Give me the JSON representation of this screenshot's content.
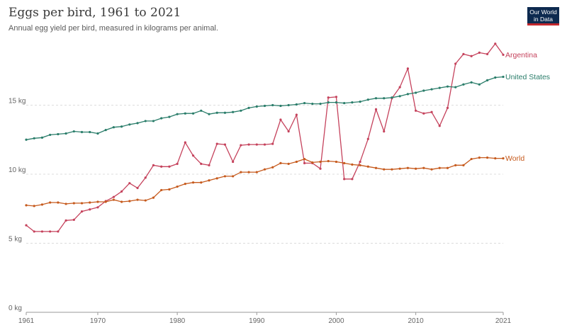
{
  "header": {
    "title": "Eggs per bird, 1961 to 2021",
    "subtitle": "Annual egg yield per bird, measured in kilograms per animal.",
    "logo_line1": "Our World",
    "logo_line2": "in Data"
  },
  "chart_data": {
    "type": "line",
    "title": "Eggs per bird, 1961 to 2021",
    "subtitle": "Annual egg yield per bird, measured in kilograms per animal.",
    "xlim": [
      1961,
      2021
    ],
    "ylim": [
      0,
      20
    ],
    "x_ticks": [
      1961,
      1970,
      1980,
      1990,
      2000,
      2010,
      2021
    ],
    "y_ticks": [
      {
        "value": 0,
        "label": "0 kg"
      },
      {
        "value": 5,
        "label": "5 kg"
      },
      {
        "value": 10,
        "label": "10 kg"
      },
      {
        "value": 15,
        "label": "15 kg"
      }
    ],
    "grid": "horizontal dashed",
    "series": [
      {
        "name": "Argentina",
        "color": "#c5425c",
        "x": [
          1961,
          1962,
          1963,
          1964,
          1965,
          1966,
          1967,
          1968,
          1969,
          1970,
          1971,
          1972,
          1973,
          1974,
          1975,
          1976,
          1977,
          1978,
          1979,
          1980,
          1981,
          1982,
          1983,
          1984,
          1985,
          1986,
          1987,
          1988,
          1989,
          1990,
          1991,
          1992,
          1993,
          1994,
          1995,
          1996,
          1997,
          1998,
          1999,
          2000,
          2001,
          2002,
          2003,
          2004,
          2005,
          2006,
          2007,
          2008,
          2009,
          2010,
          2011,
          2012,
          2013,
          2014,
          2015,
          2016,
          2017,
          2018,
          2019,
          2020,
          2021
        ],
        "values": [
          6.3,
          5.85,
          5.85,
          5.85,
          5.85,
          6.65,
          6.7,
          7.3,
          7.45,
          7.6,
          8.05,
          8.35,
          8.75,
          9.35,
          9.0,
          9.75,
          10.65,
          10.55,
          10.55,
          10.75,
          12.3,
          11.35,
          10.75,
          10.65,
          12.2,
          12.15,
          10.9,
          12.1,
          12.15,
          12.15,
          12.15,
          12.2,
          13.95,
          13.1,
          14.3,
          10.8,
          10.8,
          10.4,
          15.55,
          15.6,
          9.65,
          9.65,
          10.9,
          12.55,
          14.7,
          13.1,
          15.5,
          16.3,
          17.65,
          14.6,
          14.4,
          14.5,
          13.5,
          14.8,
          18.0,
          18.7,
          18.55,
          18.8,
          18.7,
          19.45,
          18.65
        ]
      },
      {
        "name": "United States",
        "color": "#2a7d6a",
        "x": [
          1961,
          1962,
          1963,
          1964,
          1965,
          1966,
          1967,
          1968,
          1969,
          1970,
          1971,
          1972,
          1973,
          1974,
          1975,
          1976,
          1977,
          1978,
          1979,
          1980,
          1981,
          1982,
          1983,
          1984,
          1985,
          1986,
          1987,
          1988,
          1989,
          1990,
          1991,
          1992,
          1993,
          1994,
          1995,
          1996,
          1997,
          1998,
          1999,
          2000,
          2001,
          2002,
          2003,
          2004,
          2005,
          2006,
          2007,
          2008,
          2009,
          2010,
          2011,
          2012,
          2013,
          2014,
          2015,
          2016,
          2017,
          2018,
          2019,
          2020,
          2021
        ],
        "values": [
          12.5,
          12.6,
          12.65,
          12.85,
          12.9,
          12.95,
          13.1,
          13.05,
          13.05,
          12.95,
          13.2,
          13.4,
          13.45,
          13.6,
          13.7,
          13.85,
          13.85,
          14.05,
          14.15,
          14.35,
          14.4,
          14.4,
          14.6,
          14.35,
          14.45,
          14.45,
          14.5,
          14.6,
          14.8,
          14.9,
          14.95,
          15.0,
          14.95,
          15.0,
          15.05,
          15.15,
          15.1,
          15.1,
          15.2,
          15.2,
          15.15,
          15.2,
          15.25,
          15.4,
          15.5,
          15.5,
          15.55,
          15.65,
          15.8,
          15.9,
          16.05,
          16.15,
          16.25,
          16.35,
          16.3,
          16.5,
          16.65,
          16.5,
          16.8,
          17.0,
          17.05
        ]
      },
      {
        "name": "World",
        "color": "#c65a1d",
        "x": [
          1961,
          1962,
          1963,
          1964,
          1965,
          1966,
          1967,
          1968,
          1969,
          1970,
          1971,
          1972,
          1973,
          1974,
          1975,
          1976,
          1977,
          1978,
          1979,
          1980,
          1981,
          1982,
          1983,
          1984,
          1985,
          1986,
          1987,
          1988,
          1989,
          1990,
          1991,
          1992,
          1993,
          1994,
          1995,
          1996,
          1997,
          1998,
          1999,
          2000,
          2001,
          2002,
          2003,
          2004,
          2005,
          2006,
          2007,
          2008,
          2009,
          2010,
          2011,
          2012,
          2013,
          2014,
          2015,
          2016,
          2017,
          2018,
          2019,
          2020,
          2021
        ],
        "values": [
          7.75,
          7.7,
          7.8,
          7.95,
          7.95,
          7.85,
          7.9,
          7.9,
          7.95,
          8.0,
          8.0,
          8.15,
          8.0,
          8.05,
          8.15,
          8.1,
          8.3,
          8.85,
          8.9,
          9.1,
          9.3,
          9.4,
          9.4,
          9.55,
          9.7,
          9.85,
          9.85,
          10.15,
          10.15,
          10.15,
          10.35,
          10.5,
          10.8,
          10.75,
          10.9,
          11.1,
          10.85,
          10.9,
          10.95,
          10.9,
          10.8,
          10.7,
          10.65,
          10.55,
          10.45,
          10.35,
          10.35,
          10.4,
          10.45,
          10.4,
          10.45,
          10.35,
          10.45,
          10.45,
          10.65,
          10.65,
          11.1,
          11.2,
          11.2,
          11.15,
          11.15
        ]
      }
    ]
  }
}
